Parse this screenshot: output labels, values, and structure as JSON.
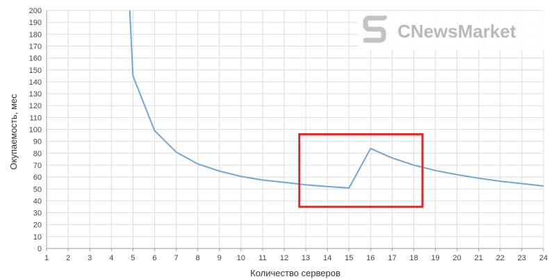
{
  "chart_data": {
    "type": "line",
    "title": "",
    "xlabel": "Количество серверов",
    "ylabel": "Окупаемость, мес",
    "xlim": [
      1,
      24
    ],
    "ylim": [
      0,
      200
    ],
    "x_ticks": [
      1,
      2,
      3,
      4,
      5,
      6,
      7,
      8,
      9,
      10,
      11,
      12,
      13,
      14,
      15,
      16,
      17,
      18,
      19,
      20,
      21,
      22,
      23,
      24
    ],
    "y_ticks": [
      0,
      10,
      20,
      30,
      40,
      50,
      60,
      70,
      80,
      90,
      100,
      110,
      120,
      130,
      140,
      150,
      160,
      170,
      180,
      190,
      200
    ],
    "grid": true,
    "series": [
      {
        "color": "#6fa6d3",
        "x": [
          4.85,
          5,
          6,
          7,
          8,
          9,
          10,
          11,
          12,
          13,
          14,
          15,
          16,
          17,
          18,
          19,
          20,
          21,
          22,
          23,
          24
        ],
        "y": [
          200,
          145,
          99,
          81,
          71,
          65,
          60.5,
          57.5,
          55.5,
          53.5,
          52,
          50.8,
          84,
          76,
          70,
          65.5,
          62,
          59,
          56.5,
          54.5,
          52.5
        ]
      }
    ],
    "highlight": {
      "x_range": [
        12.7,
        18.4
      ],
      "y_range": [
        35,
        96
      ],
      "color": "#e3262b"
    }
  },
  "watermark": {
    "text": "CNewsMarket",
    "color": "#b9b9b9"
  }
}
